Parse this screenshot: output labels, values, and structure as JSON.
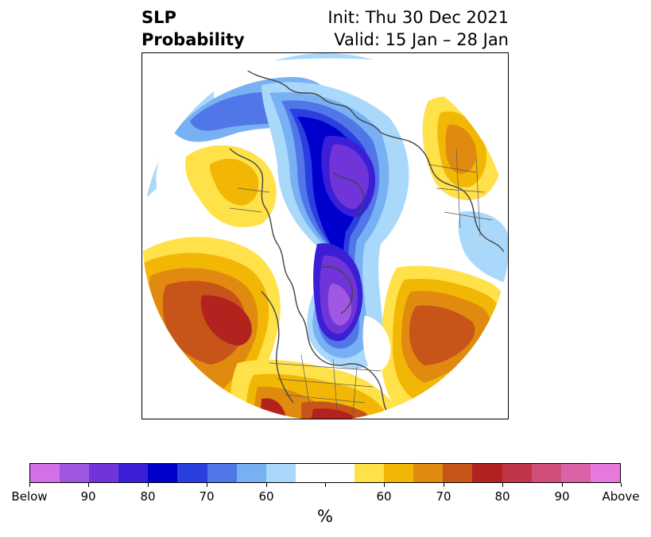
{
  "title": {
    "left_line1": "SLP",
    "left_line2": "Probability",
    "right_line1": "Init: Thu 30 Dec 2021",
    "right_line2": "Valid: 15 Jan – 28 Jan"
  },
  "map": {
    "projection": "north-polar-stereographic",
    "field": "SLP",
    "categories": [
      "Below",
      "Above"
    ]
  },
  "colorbar": {
    "colors": [
      "#d46fe8",
      "#a057e3",
      "#7034d9",
      "#3a1fd6",
      "#0000cc",
      "#2a3fdf",
      "#5076e8",
      "#78b1f3",
      "#aad8fb",
      "#ffffff",
      "#ffffff",
      "#ffe14a",
      "#f2b705",
      "#e08b10",
      "#c75418",
      "#b2221f",
      "#c2344a",
      "#d0507a",
      "#dc62a8",
      "#e779dc"
    ],
    "tick_labels": [
      "Below",
      "90",
      "80",
      "70",
      "60",
      "",
      "60",
      "70",
      "80",
      "90",
      "Above"
    ],
    "units": "%"
  }
}
